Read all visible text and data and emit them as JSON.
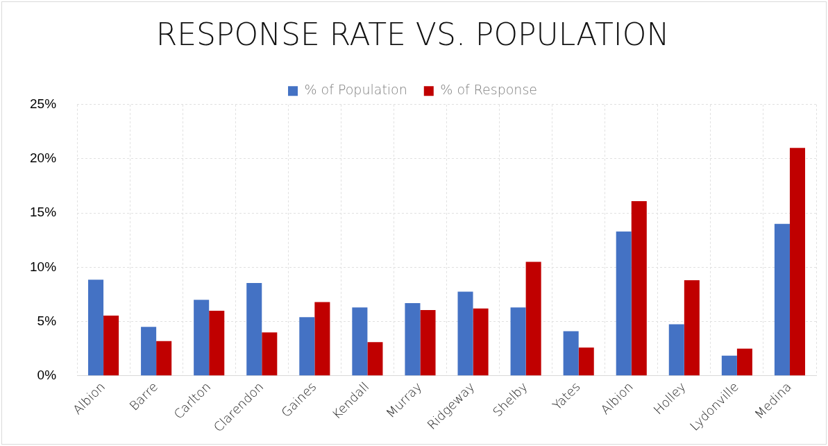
{
  "chart_data": {
    "type": "bar",
    "title": "RESPONSE RATE VS. POPULATION",
    "categories": [
      "Albion",
      "Barre",
      "Carlton",
      "Clarendon",
      "Gaines",
      "Kendall",
      "Murray",
      "Ridgeway",
      "Shelby",
      "Yates",
      "Albion",
      "Holley",
      "Lydonville",
      "Medina"
    ],
    "series": [
      {
        "name": "% of Population",
        "color": "#4472c4",
        "values": [
          8.85,
          4.5,
          7.0,
          8.55,
          5.4,
          6.3,
          6.7,
          7.75,
          6.3,
          4.1,
          13.3,
          4.75,
          1.85,
          14.0
        ]
      },
      {
        "name": "% of Response",
        "color": "#c00000",
        "values": [
          5.55,
          3.2,
          6.0,
          4.0,
          6.8,
          3.1,
          6.05,
          6.2,
          10.5,
          2.6,
          16.1,
          8.8,
          2.5,
          21.0
        ]
      }
    ],
    "ylim": [
      0,
      25
    ],
    "yticks": [
      {
        "value": 0,
        "label": "0%"
      },
      {
        "value": 5,
        "label": "5%"
      },
      {
        "value": 10,
        "label": "10%"
      },
      {
        "value": 15,
        "label": "15%"
      },
      {
        "value": 20,
        "label": "20%"
      },
      {
        "value": 25,
        "label": "25%"
      }
    ],
    "grid": true,
    "legend": "top"
  }
}
